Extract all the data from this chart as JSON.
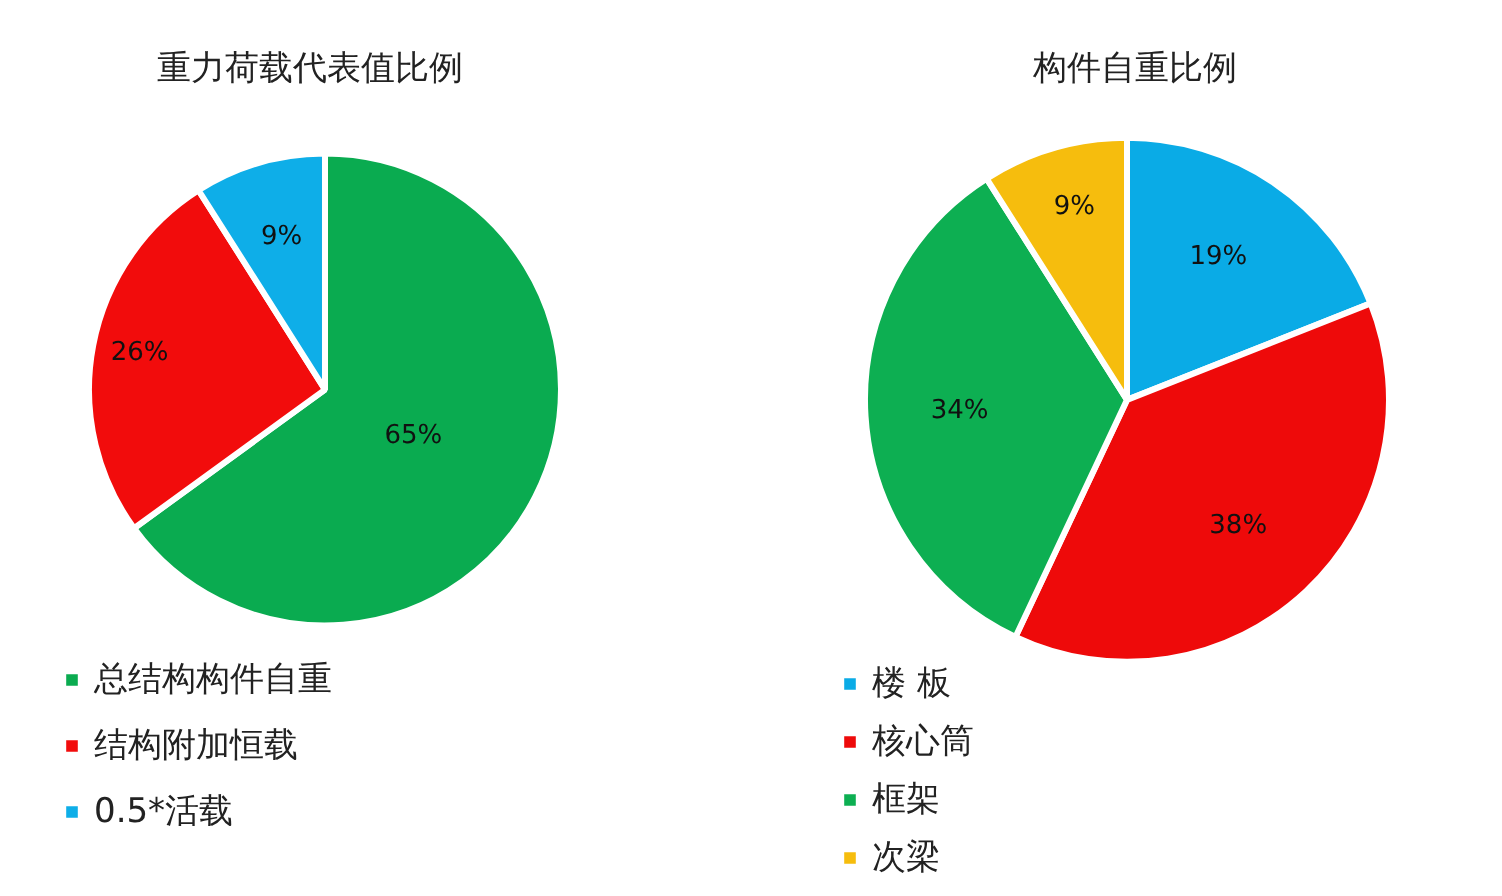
{
  "chart_data": [
    {
      "type": "pie",
      "title": "重力荷载代表值比例",
      "categories": [
        "总结构构件自重",
        "结构附加恒载",
        "0.5*活载"
      ],
      "values": [
        65,
        26,
        9
      ],
      "colors": [
        "#0aab50",
        "#f20c0c",
        "#0eaee8"
      ],
      "value_labels": [
        "65%",
        "26%",
        "9%"
      ],
      "legend": "bottom left"
    },
    {
      "type": "pie",
      "title": "构件自重比例",
      "categories": [
        "楼 板",
        "核心筒",
        "框架",
        "次梁"
      ],
      "values": [
        19,
        38,
        34,
        9
      ],
      "colors": [
        "#0aabe6",
        "#ee0a0a",
        "#0daf52",
        "#f6bd0d"
      ],
      "value_labels": [
        "19%",
        "38%",
        "34%",
        "9%"
      ],
      "legend": "bottom left"
    }
  ]
}
